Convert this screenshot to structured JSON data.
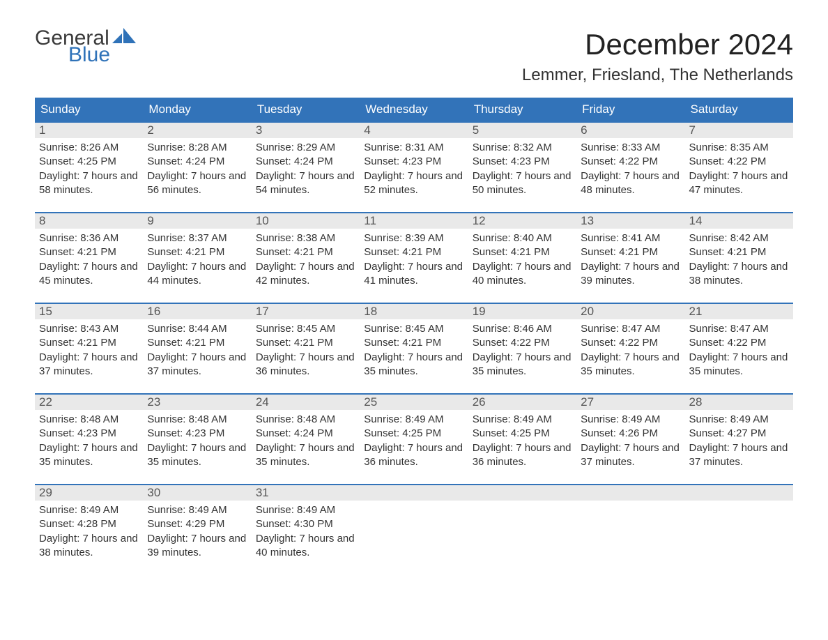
{
  "logo": {
    "word1": "General",
    "word2": "Blue",
    "text_color": "#3a3a3a",
    "accent_color": "#2f72b8"
  },
  "title": "December 2024",
  "location": "Lemmer, Friesland, The Netherlands",
  "colors": {
    "header_bg": "#3273b9",
    "header_text": "#ffffff",
    "daynum_bg": "#e9e9e9",
    "week_border": "#3273b9",
    "body_bg": "#ffffff",
    "text": "#333333"
  },
  "fonts": {
    "title_size_pt": 32,
    "location_size_pt": 18,
    "header_size_pt": 13,
    "body_size_pt": 11
  },
  "day_headers": [
    "Sunday",
    "Monday",
    "Tuesday",
    "Wednesday",
    "Thursday",
    "Friday",
    "Saturday"
  ],
  "weeks": [
    [
      {
        "n": "1",
        "sunrise": "Sunrise: 8:26 AM",
        "sunset": "Sunset: 4:25 PM",
        "daylight": "Daylight: 7 hours and 58 minutes."
      },
      {
        "n": "2",
        "sunrise": "Sunrise: 8:28 AM",
        "sunset": "Sunset: 4:24 PM",
        "daylight": "Daylight: 7 hours and 56 minutes."
      },
      {
        "n": "3",
        "sunrise": "Sunrise: 8:29 AM",
        "sunset": "Sunset: 4:24 PM",
        "daylight": "Daylight: 7 hours and 54 minutes."
      },
      {
        "n": "4",
        "sunrise": "Sunrise: 8:31 AM",
        "sunset": "Sunset: 4:23 PM",
        "daylight": "Daylight: 7 hours and 52 minutes."
      },
      {
        "n": "5",
        "sunrise": "Sunrise: 8:32 AM",
        "sunset": "Sunset: 4:23 PM",
        "daylight": "Daylight: 7 hours and 50 minutes."
      },
      {
        "n": "6",
        "sunrise": "Sunrise: 8:33 AM",
        "sunset": "Sunset: 4:22 PM",
        "daylight": "Daylight: 7 hours and 48 minutes."
      },
      {
        "n": "7",
        "sunrise": "Sunrise: 8:35 AM",
        "sunset": "Sunset: 4:22 PM",
        "daylight": "Daylight: 7 hours and 47 minutes."
      }
    ],
    [
      {
        "n": "8",
        "sunrise": "Sunrise: 8:36 AM",
        "sunset": "Sunset: 4:21 PM",
        "daylight": "Daylight: 7 hours and 45 minutes."
      },
      {
        "n": "9",
        "sunrise": "Sunrise: 8:37 AM",
        "sunset": "Sunset: 4:21 PM",
        "daylight": "Daylight: 7 hours and 44 minutes."
      },
      {
        "n": "10",
        "sunrise": "Sunrise: 8:38 AM",
        "sunset": "Sunset: 4:21 PM",
        "daylight": "Daylight: 7 hours and 42 minutes."
      },
      {
        "n": "11",
        "sunrise": "Sunrise: 8:39 AM",
        "sunset": "Sunset: 4:21 PM",
        "daylight": "Daylight: 7 hours and 41 minutes."
      },
      {
        "n": "12",
        "sunrise": "Sunrise: 8:40 AM",
        "sunset": "Sunset: 4:21 PM",
        "daylight": "Daylight: 7 hours and 40 minutes."
      },
      {
        "n": "13",
        "sunrise": "Sunrise: 8:41 AM",
        "sunset": "Sunset: 4:21 PM",
        "daylight": "Daylight: 7 hours and 39 minutes."
      },
      {
        "n": "14",
        "sunrise": "Sunrise: 8:42 AM",
        "sunset": "Sunset: 4:21 PM",
        "daylight": "Daylight: 7 hours and 38 minutes."
      }
    ],
    [
      {
        "n": "15",
        "sunrise": "Sunrise: 8:43 AM",
        "sunset": "Sunset: 4:21 PM",
        "daylight": "Daylight: 7 hours and 37 minutes."
      },
      {
        "n": "16",
        "sunrise": "Sunrise: 8:44 AM",
        "sunset": "Sunset: 4:21 PM",
        "daylight": "Daylight: 7 hours and 37 minutes."
      },
      {
        "n": "17",
        "sunrise": "Sunrise: 8:45 AM",
        "sunset": "Sunset: 4:21 PM",
        "daylight": "Daylight: 7 hours and 36 minutes."
      },
      {
        "n": "18",
        "sunrise": "Sunrise: 8:45 AM",
        "sunset": "Sunset: 4:21 PM",
        "daylight": "Daylight: 7 hours and 35 minutes."
      },
      {
        "n": "19",
        "sunrise": "Sunrise: 8:46 AM",
        "sunset": "Sunset: 4:22 PM",
        "daylight": "Daylight: 7 hours and 35 minutes."
      },
      {
        "n": "20",
        "sunrise": "Sunrise: 8:47 AM",
        "sunset": "Sunset: 4:22 PM",
        "daylight": "Daylight: 7 hours and 35 minutes."
      },
      {
        "n": "21",
        "sunrise": "Sunrise: 8:47 AM",
        "sunset": "Sunset: 4:22 PM",
        "daylight": "Daylight: 7 hours and 35 minutes."
      }
    ],
    [
      {
        "n": "22",
        "sunrise": "Sunrise: 8:48 AM",
        "sunset": "Sunset: 4:23 PM",
        "daylight": "Daylight: 7 hours and 35 minutes."
      },
      {
        "n": "23",
        "sunrise": "Sunrise: 8:48 AM",
        "sunset": "Sunset: 4:23 PM",
        "daylight": "Daylight: 7 hours and 35 minutes."
      },
      {
        "n": "24",
        "sunrise": "Sunrise: 8:48 AM",
        "sunset": "Sunset: 4:24 PM",
        "daylight": "Daylight: 7 hours and 35 minutes."
      },
      {
        "n": "25",
        "sunrise": "Sunrise: 8:49 AM",
        "sunset": "Sunset: 4:25 PM",
        "daylight": "Daylight: 7 hours and 36 minutes."
      },
      {
        "n": "26",
        "sunrise": "Sunrise: 8:49 AM",
        "sunset": "Sunset: 4:25 PM",
        "daylight": "Daylight: 7 hours and 36 minutes."
      },
      {
        "n": "27",
        "sunrise": "Sunrise: 8:49 AM",
        "sunset": "Sunset: 4:26 PM",
        "daylight": "Daylight: 7 hours and 37 minutes."
      },
      {
        "n": "28",
        "sunrise": "Sunrise: 8:49 AM",
        "sunset": "Sunset: 4:27 PM",
        "daylight": "Daylight: 7 hours and 37 minutes."
      }
    ],
    [
      {
        "n": "29",
        "sunrise": "Sunrise: 8:49 AM",
        "sunset": "Sunset: 4:28 PM",
        "daylight": "Daylight: 7 hours and 38 minutes."
      },
      {
        "n": "30",
        "sunrise": "Sunrise: 8:49 AM",
        "sunset": "Sunset: 4:29 PM",
        "daylight": "Daylight: 7 hours and 39 minutes."
      },
      {
        "n": "31",
        "sunrise": "Sunrise: 8:49 AM",
        "sunset": "Sunset: 4:30 PM",
        "daylight": "Daylight: 7 hours and 40 minutes."
      },
      null,
      null,
      null,
      null
    ]
  ]
}
